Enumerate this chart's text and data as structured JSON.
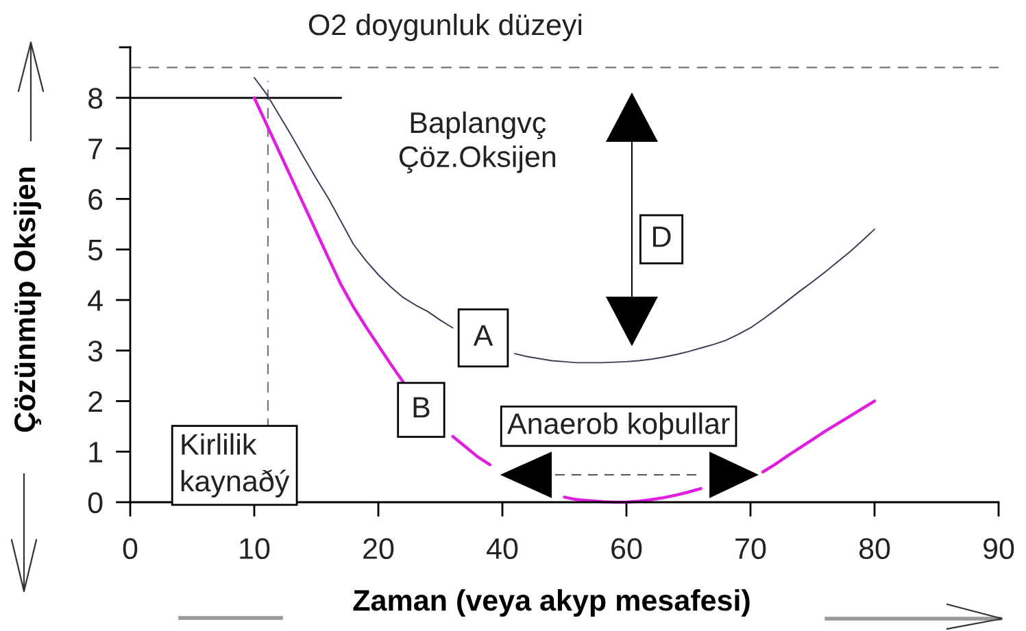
{
  "chart_data": {
    "type": "line",
    "xlabel": "Zaman (veya akyp mesafesi)",
    "ylabel": "Çözünmüp Oksijen",
    "categories": [
      "0",
      null,
      null,
      null,
      null,
      null,
      null,
      null,
      null,
      null,
      "10",
      null,
      null,
      null,
      null,
      null,
      null,
      null,
      null,
      null,
      "20",
      null,
      null,
      null,
      null,
      null,
      null,
      null,
      null,
      null,
      "40",
      null,
      null,
      null,
      null,
      null,
      null,
      null,
      null,
      null,
      "60",
      null,
      null,
      null,
      null,
      null,
      null,
      null,
      null,
      null,
      "70",
      null,
      null,
      null,
      null,
      null,
      null,
      null,
      null,
      null,
      "80",
      null,
      null,
      null,
      null,
      null,
      null,
      null,
      null,
      null,
      "90"
    ],
    "ylim": [
      0,
      9
    ],
    "yticks": [
      0,
      1,
      2,
      3,
      4,
      5,
      6,
      7,
      8
    ],
    "series": [
      {
        "name": "A",
        "color": "#3b3b55",
        "values": [
          null,
          null,
          null,
          null,
          null,
          null,
          null,
          null,
          null,
          null,
          8.4,
          8.07,
          7.66,
          7.25,
          6.82,
          6.4,
          6.0,
          5.55,
          5.1,
          4.78,
          4.5,
          4.26,
          4.05,
          3.9,
          3.77,
          3.6,
          3.45,
          null,
          null,
          null,
          null,
          2.94,
          2.88,
          2.84,
          2.8,
          2.78,
          2.76,
          2.76,
          2.76,
          2.77,
          2.78,
          2.8,
          2.83,
          2.87,
          2.92,
          2.98,
          3.05,
          3.12,
          3.2,
          3.32,
          3.45,
          3.62,
          3.8,
          3.99,
          4.18,
          4.36,
          4.55,
          4.75,
          4.95,
          5.17,
          5.4,
          null,
          null,
          null,
          null,
          null,
          null,
          null,
          null,
          null,
          null
        ]
      },
      {
        "name": "B",
        "color": "#e01ee0",
        "values": [
          null,
          null,
          null,
          null,
          null,
          null,
          null,
          null,
          null,
          null,
          8.0,
          7.47,
          6.94,
          6.41,
          5.88,
          5.35,
          4.82,
          4.3,
          3.86,
          3.47,
          3.1,
          2.73,
          2.38,
          null,
          null,
          null,
          1.3,
          1.1,
          0.9,
          0.74,
          null,
          null,
          null,
          null,
          null,
          0.1,
          0.05,
          0.03,
          0.01,
          0,
          0,
          0.02,
          0.05,
          0.09,
          0.14,
          0.2,
          0.27,
          null,
          null,
          null,
          null,
          0.6,
          0.75,
          0.92,
          1.08,
          1.24,
          1.4,
          1.55,
          1.7,
          1.85,
          2.0,
          null,
          null,
          null,
          null,
          null,
          null,
          null,
          null,
          null,
          null
        ]
      },
      {
        "color": "#000000",
        "values": [
          8,
          8,
          8,
          8,
          8,
          8,
          8,
          8,
          8,
          8,
          8,
          8,
          8,
          8,
          8,
          8,
          8,
          8,
          null,
          null,
          null,
          null,
          null,
          null,
          null,
          null,
          null,
          null,
          null,
          null,
          null,
          null,
          null,
          null,
          null,
          null,
          null,
          null,
          null,
          null,
          null,
          null,
          null,
          null,
          null,
          null,
          null,
          null,
          null,
          null,
          null,
          null,
          null,
          null,
          null,
          null,
          null,
          null,
          null,
          null,
          null,
          null,
          null,
          null,
          null,
          null,
          null,
          null,
          null,
          null,
          null
        ]
      }
    ],
    "ref_lines": [
      {
        "axis": "y",
        "value": 8.6,
        "label": "O2 doygunluk düzeyi",
        "color": "#666666",
        "line_style": "dashed"
      }
    ],
    "annotations": [
      "Baplangvç\nÇöz.Oksijen",
      "D",
      "Anaerob koþullar",
      "Kirlilik\nkaynaðý"
    ]
  }
}
